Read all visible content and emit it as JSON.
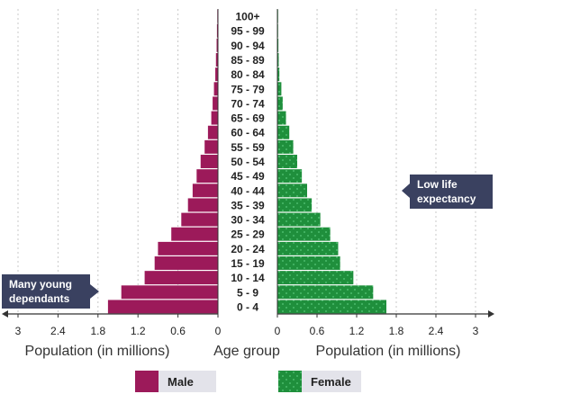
{
  "chart_data": {
    "type": "bar",
    "orientation": "horizontal",
    "subtype": "population-pyramid",
    "categories": [
      "0 - 4",
      "5 - 9",
      "10 - 14",
      "15 - 19",
      "20 - 24",
      "25 - 29",
      "30 - 34",
      "35 - 39",
      "40 - 44",
      "45 - 49",
      "50 - 54",
      "55 - 59",
      "60 - 64",
      "65 - 69",
      "70 - 74",
      "75 - 79",
      "80 - 84",
      "85 - 89",
      "90 - 94",
      "95 - 99",
      "100+"
    ],
    "series": [
      {
        "name": "Male",
        "color": "#9c1a5a",
        "values": [
          1.65,
          1.45,
          1.1,
          0.95,
          0.9,
          0.7,
          0.55,
          0.45,
          0.38,
          0.32,
          0.26,
          0.2,
          0.15,
          0.1,
          0.08,
          0.06,
          0.04,
          0.03,
          0.02,
          0.015,
          0.01
        ]
      },
      {
        "name": "Female",
        "color": "#1f8f3c",
        "values": [
          1.65,
          1.45,
          1.15,
          0.95,
          0.92,
          0.8,
          0.65,
          0.52,
          0.45,
          0.37,
          0.3,
          0.24,
          0.18,
          0.13,
          0.08,
          0.06,
          0.03,
          0.02,
          0.015,
          0.01,
          0.005
        ]
      }
    ],
    "xlabel_left": "Population (in millions)",
    "xlabel_right": "Population (in millions)",
    "center_label": "Age group",
    "xlim": [
      0,
      3
    ],
    "x_ticks": [
      0,
      0.6,
      1.2,
      1.8,
      2.4,
      3
    ],
    "x_tick_labels": [
      "0",
      "0.6",
      "1.2",
      "1.8",
      "2.4",
      "3"
    ],
    "grid": true,
    "legend": "bottom",
    "annotations": [
      {
        "text_lines": [
          "Many young",
          "dependants"
        ],
        "side": "left-bottom"
      },
      {
        "text_lines": [
          "Low life",
          "expectancy"
        ],
        "side": "right-middle"
      }
    ]
  },
  "colors": {
    "male": "#9c1a5a",
    "female": "#1f8f3c",
    "female_dots": "#3dbb64",
    "grid": "#c8c8c8",
    "callout": "#3a4160",
    "legend_bg": "#e3e3ea"
  }
}
